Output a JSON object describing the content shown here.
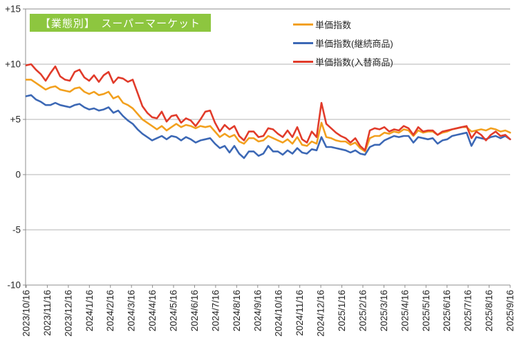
{
  "title": {
    "text": "【業態別】　スーパーマーケット",
    "bg_color": "#8DC63F",
    "text_color": "#FFFFFF"
  },
  "chart_data": {
    "type": "line",
    "title": "【業態別】 スーパーマーケット",
    "xlabel": "",
    "ylabel": "",
    "ylim": [
      -10,
      15
    ],
    "ytick_labels": [
      "+15",
      "+10",
      "+5",
      "0",
      "-5",
      "-10"
    ],
    "ytick_values": [
      15,
      10,
      5,
      0,
      -5,
      -10
    ],
    "grid": true,
    "legend_position": "top-right",
    "x_frequency": "weekly",
    "x_labels": [
      "2023/10/16",
      "2023/11/16",
      "2023/12/16",
      "2024/1/16",
      "2024/2/16",
      "2024/3/16",
      "2024/4/16",
      "2024/5/16",
      "2024/6/16",
      "2024/7/16",
      "2024/8/16",
      "2024/9/16",
      "2024/10/16",
      "2024/11/16",
      "2024/12/16",
      "2025/1/16",
      "2025/2/16",
      "2025/3/16",
      "2025/4/16",
      "2025/5/16",
      "2025/6/16",
      "2025/7/16",
      "2025/8/16",
      "2025/9/16"
    ],
    "series": [
      {
        "name": "単価指数",
        "color": "#F2A01E",
        "values": [
          8.6,
          8.6,
          8.3,
          8.0,
          7.7,
          7.9,
          8.0,
          7.7,
          7.6,
          7.5,
          7.8,
          7.9,
          7.5,
          7.3,
          7.5,
          7.2,
          7.3,
          7.5,
          6.9,
          7.1,
          6.5,
          6.3,
          6.0,
          5.5,
          5.0,
          4.7,
          4.4,
          4.1,
          4.4,
          4.0,
          4.3,
          4.6,
          4.3,
          4.5,
          4.4,
          4.2,
          4.4,
          4.3,
          4.4,
          3.9,
          3.4,
          3.7,
          3.4,
          3.6,
          3.0,
          2.8,
          3.3,
          3.3,
          3.0,
          3.1,
          3.5,
          3.3,
          3.1,
          2.9,
          3.2,
          2.8,
          3.4,
          2.7,
          2.6,
          3.0,
          2.8,
          4.7,
          3.4,
          3.3,
          3.1,
          3.0,
          3.0,
          2.7,
          2.9,
          2.4,
          2.1,
          3.3,
          3.5,
          3.5,
          3.8,
          3.7,
          3.9,
          3.8,
          4.1,
          4.0,
          3.5,
          4.0,
          3.8,
          3.9,
          3.9,
          3.6,
          3.8,
          3.9,
          4.1,
          4.2,
          4.3,
          4.3,
          3.9,
          4.0,
          4.1,
          4.0,
          4.2,
          4.1,
          3.9,
          4.0,
          3.8
        ]
      },
      {
        "name": "単価指数(継続商品)",
        "color": "#3C68B5",
        "values": [
          7.1,
          7.2,
          6.8,
          6.6,
          6.3,
          6.3,
          6.5,
          6.3,
          6.2,
          6.1,
          6.3,
          6.4,
          6.1,
          5.9,
          6.0,
          5.8,
          5.9,
          6.1,
          5.6,
          5.8,
          5.3,
          4.9,
          4.6,
          4.1,
          3.7,
          3.4,
          3.1,
          3.3,
          3.5,
          3.2,
          3.5,
          3.4,
          3.1,
          3.4,
          3.2,
          2.9,
          3.1,
          3.2,
          3.3,
          2.8,
          2.4,
          2.6,
          2.0,
          2.6,
          1.9,
          1.5,
          2.1,
          2.1,
          1.7,
          1.9,
          2.6,
          2.1,
          2.1,
          1.8,
          2.2,
          1.9,
          2.4,
          2.0,
          1.9,
          2.3,
          2.2,
          3.4,
          2.5,
          2.5,
          2.4,
          2.3,
          2.2,
          2.0,
          2.2,
          1.9,
          1.8,
          2.5,
          2.7,
          2.7,
          3.1,
          3.3,
          3.5,
          3.4,
          3.5,
          3.5,
          2.9,
          3.4,
          3.3,
          3.2,
          3.3,
          2.8,
          3.1,
          3.2,
          3.5,
          3.6,
          3.7,
          3.8,
          2.6,
          3.4,
          3.3,
          3.2,
          3.4,
          3.5,
          3.3,
          3.5,
          3.2
        ]
      },
      {
        "name": "単価指数(入替商品)",
        "color": "#E13B2A",
        "values": [
          9.9,
          10.0,
          9.5,
          9.1,
          8.5,
          9.2,
          9.8,
          8.9,
          8.6,
          8.5,
          9.3,
          9.5,
          8.8,
          8.5,
          9.0,
          8.4,
          9.0,
          9.3,
          8.3,
          8.8,
          8.7,
          8.4,
          8.6,
          7.4,
          6.2,
          5.6,
          5.2,
          5.1,
          5.7,
          4.8,
          5.3,
          5.4,
          4.7,
          5.1,
          4.9,
          4.4,
          5.0,
          5.7,
          5.8,
          4.7,
          3.9,
          4.5,
          4.1,
          4.4,
          3.5,
          3.1,
          3.9,
          3.9,
          3.4,
          3.5,
          4.2,
          4.1,
          3.7,
          3.4,
          4.0,
          3.4,
          4.3,
          3.2,
          2.9,
          3.9,
          3.4,
          6.5,
          4.6,
          4.2,
          3.8,
          3.5,
          3.3,
          2.9,
          3.3,
          2.6,
          2.2,
          4.0,
          4.2,
          4.1,
          4.3,
          3.9,
          4.1,
          4.0,
          4.4,
          4.2,
          3.6,
          4.3,
          3.9,
          4.0,
          4.0,
          3.6,
          3.9,
          4.0,
          4.1,
          4.2,
          4.3,
          4.4,
          3.3,
          3.9,
          3.6,
          3.1,
          3.6,
          3.9,
          3.5,
          3.6,
          3.2
        ]
      }
    ]
  }
}
